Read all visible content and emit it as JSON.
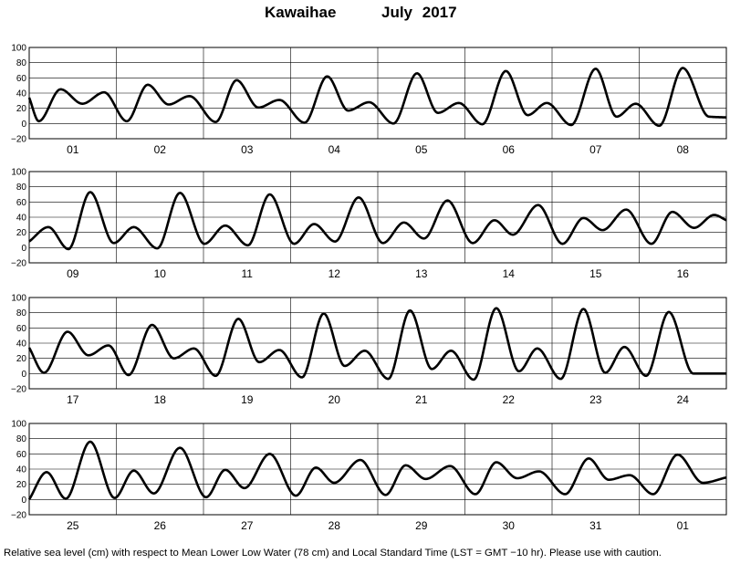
{
  "title": {
    "station": "Kawaihae",
    "month": "July",
    "year": "2017"
  },
  "footnote": "Relative sea level (cm) with respect to Mean Lower Low Water (78 cm) and Local Standard Time (LST = GMT −10 hr). Please use with caution.",
  "chart_data": {
    "type": "line",
    "title": "Kawaihae July 2017",
    "xlabel": "",
    "ylabel": "",
    "ylim": [
      -20,
      100
    ],
    "yticks": [
      "100",
      "80",
      "60",
      "40",
      "20",
      "0",
      "−20"
    ],
    "grid": true,
    "legend": "none",
    "line_color": "#000000",
    "panels": [
      {
        "day_labels": [
          "01",
          "02",
          "03",
          "04",
          "05",
          "06",
          "07",
          "08"
        ],
        "extrema": [
          [
            0,
            34
          ],
          [
            0.11,
            3
          ],
          [
            0.36,
            45
          ],
          [
            0.61,
            26
          ],
          [
            0.86,
            41
          ],
          [
            1.12,
            3
          ],
          [
            1.36,
            51
          ],
          [
            1.6,
            25
          ],
          [
            1.84,
            36
          ],
          [
            2.14,
            2
          ],
          [
            2.38,
            57
          ],
          [
            2.63,
            21
          ],
          [
            2.87,
            31
          ],
          [
            3.16,
            1
          ],
          [
            3.42,
            62
          ],
          [
            3.66,
            17
          ],
          [
            3.9,
            28
          ],
          [
            4.18,
            0
          ],
          [
            4.45,
            66
          ],
          [
            4.69,
            14
          ],
          [
            4.93,
            27
          ],
          [
            5.2,
            -1
          ],
          [
            5.47,
            69
          ],
          [
            5.72,
            11
          ],
          [
            5.94,
            27
          ],
          [
            6.22,
            -2
          ],
          [
            6.5,
            72
          ],
          [
            6.74,
            9
          ],
          [
            6.96,
            26
          ],
          [
            7.23,
            -3
          ],
          [
            7.5,
            73
          ],
          [
            7.8,
            9
          ],
          [
            8,
            8
          ]
        ]
      },
      {
        "day_labels": [
          "09",
          "10",
          "11",
          "12",
          "13",
          "14",
          "15",
          "16"
        ],
        "extrema": [
          [
            0,
            8
          ],
          [
            0.22,
            27
          ],
          [
            0.45,
            -2
          ],
          [
            0.7,
            73
          ],
          [
            0.97,
            6
          ],
          [
            1.2,
            27
          ],
          [
            1.47,
            -1
          ],
          [
            1.73,
            72
          ],
          [
            2.01,
            5
          ],
          [
            2.25,
            29
          ],
          [
            2.51,
            3
          ],
          [
            2.76,
            70
          ],
          [
            3.04,
            5
          ],
          [
            3.27,
            31
          ],
          [
            3.51,
            8
          ],
          [
            3.78,
            66
          ],
          [
            4.06,
            6
          ],
          [
            4.3,
            33
          ],
          [
            4.53,
            12
          ],
          [
            4.8,
            62
          ],
          [
            5.09,
            6
          ],
          [
            5.34,
            36
          ],
          [
            5.55,
            17
          ],
          [
            5.84,
            56
          ],
          [
            6.12,
            5
          ],
          [
            6.36,
            39
          ],
          [
            6.58,
            23
          ],
          [
            6.85,
            50
          ],
          [
            7.14,
            5
          ],
          [
            7.38,
            47
          ],
          [
            7.63,
            26
          ],
          [
            7.86,
            43
          ],
          [
            8,
            36
          ]
        ]
      },
      {
        "day_labels": [
          "17",
          "18",
          "19",
          "20",
          "21",
          "22",
          "23",
          "24"
        ],
        "extrema": [
          [
            0,
            34
          ],
          [
            0.17,
            1
          ],
          [
            0.44,
            55
          ],
          [
            0.68,
            24
          ],
          [
            0.91,
            37
          ],
          [
            1.14,
            -2
          ],
          [
            1.41,
            64
          ],
          [
            1.66,
            20
          ],
          [
            1.89,
            33
          ],
          [
            2.14,
            -3
          ],
          [
            2.4,
            72
          ],
          [
            2.64,
            15
          ],
          [
            2.87,
            31
          ],
          [
            3.13,
            -5
          ],
          [
            3.38,
            79
          ],
          [
            3.62,
            10
          ],
          [
            3.85,
            30
          ],
          [
            4.12,
            -7
          ],
          [
            4.37,
            83
          ],
          [
            4.62,
            6
          ],
          [
            4.84,
            30
          ],
          [
            5.1,
            -8
          ],
          [
            5.36,
            86
          ],
          [
            5.62,
            3
          ],
          [
            5.83,
            33
          ],
          [
            6.1,
            -7
          ],
          [
            6.36,
            85
          ],
          [
            6.61,
            1
          ],
          [
            6.83,
            35
          ],
          [
            7.08,
            -3
          ],
          [
            7.34,
            81
          ],
          [
            7.62,
            0
          ],
          [
            8,
            0
          ]
        ]
      },
      {
        "day_labels": [
          "25",
          "26",
          "27",
          "28",
          "29",
          "30",
          "31",
          "01"
        ],
        "extrema": [
          [
            0,
            0
          ],
          [
            0.2,
            36
          ],
          [
            0.42,
            1
          ],
          [
            0.7,
            76
          ],
          [
            0.98,
            2
          ],
          [
            1.2,
            38
          ],
          [
            1.43,
            8
          ],
          [
            1.73,
            68
          ],
          [
            2.03,
            3
          ],
          [
            2.25,
            39
          ],
          [
            2.47,
            15
          ],
          [
            2.76,
            60
          ],
          [
            3.06,
            5
          ],
          [
            3.29,
            42
          ],
          [
            3.5,
            22
          ],
          [
            3.8,
            52
          ],
          [
            4.09,
            6
          ],
          [
            4.32,
            45
          ],
          [
            4.55,
            27
          ],
          [
            4.83,
            44
          ],
          [
            5.12,
            7
          ],
          [
            5.36,
            49
          ],
          [
            5.6,
            28
          ],
          [
            5.85,
            37
          ],
          [
            6.15,
            7
          ],
          [
            6.42,
            54
          ],
          [
            6.65,
            26
          ],
          [
            6.89,
            32
          ],
          [
            7.16,
            7
          ],
          [
            7.44,
            59
          ],
          [
            7.73,
            22
          ],
          [
            8,
            29
          ]
        ]
      }
    ]
  }
}
